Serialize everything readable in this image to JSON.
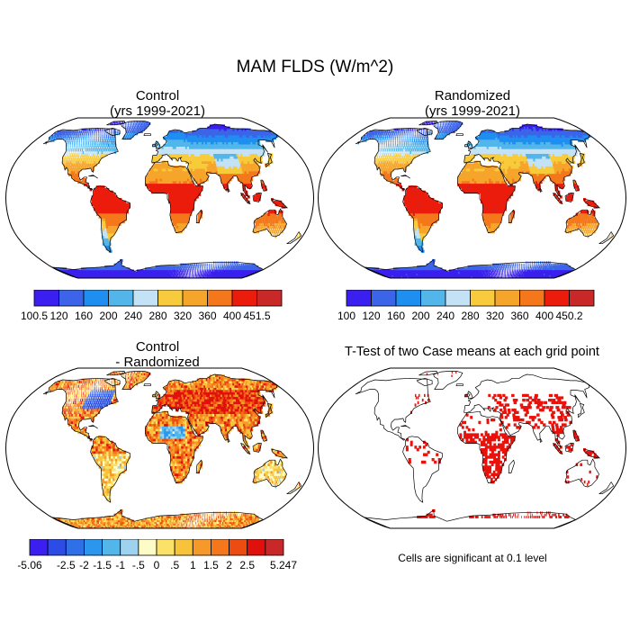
{
  "title": "MAM FLDS (W/m^2)",
  "panels": [
    {
      "id": "control",
      "title_line1": "Control",
      "title_line2": "(yrs 1999-2021)"
    },
    {
      "id": "randomized",
      "title_line1": "Randomized",
      "title_line2": "(yrs 1999-2021)"
    },
    {
      "id": "diff",
      "title_line1": "Control",
      "title_line2": "- Randomized"
    },
    {
      "id": "ttest",
      "title_line1": "T-Test of two Case means at each grid point",
      "title_line2": ""
    }
  ],
  "colorbars": {
    "control": {
      "labels": [
        "100.5",
        "120",
        "160",
        "200",
        "240",
        "280",
        "320",
        "360",
        "400",
        "451.5"
      ],
      "colors": [
        "#3b1ff0",
        "#3c64e8",
        "#1e8ff0",
        "#52b6ea",
        "#c3e2f5",
        "#f7cb3b",
        "#f6a52b",
        "#f4781b",
        "#ec1c0c",
        "#c82828"
      ]
    },
    "randomized": {
      "labels": [
        "100",
        "120",
        "160",
        "200",
        "240",
        "280",
        "320",
        "360",
        "400",
        "450.2"
      ],
      "colors": [
        "#3b1ff0",
        "#3c64e8",
        "#1e8ff0",
        "#52b6ea",
        "#c3e2f5",
        "#f7cb3b",
        "#f6a52b",
        "#f4781b",
        "#ec1c0c",
        "#c82828"
      ]
    },
    "diff": {
      "labels": [
        "-5.06",
        "",
        "-2.5",
        "-2",
        "-1.5",
        "-1",
        "-.5",
        "0",
        ".5",
        "1",
        "1.5",
        "2",
        "2.5",
        "",
        "5.247"
      ],
      "colors": [
        "#3b1ff0",
        "#2d4ce6",
        "#2f6fe8",
        "#2a96ee",
        "#52b6ea",
        "#9fd2ef",
        "#fdfbc6",
        "#fbe168",
        "#f6c33a",
        "#f59a2a",
        "#f4781b",
        "#ec4b12",
        "#e0100c",
        "#c82828"
      ]
    }
  },
  "ttest_note": "Cells are significant at 0.1 level",
  "colors": {
    "land_outline": "#000000",
    "ocean": "#ffffff",
    "significant": "#e8120c"
  }
}
